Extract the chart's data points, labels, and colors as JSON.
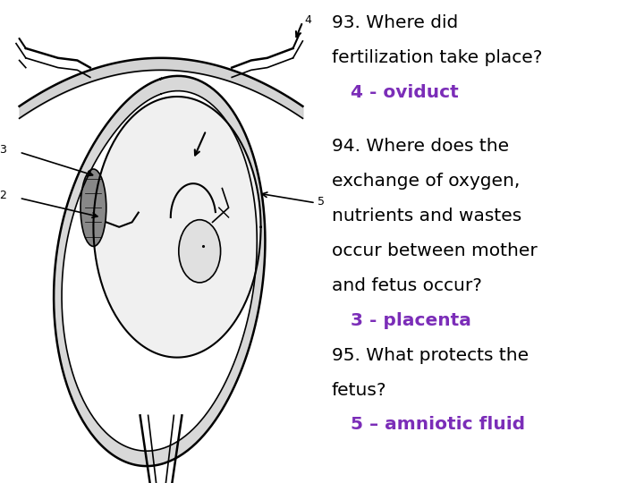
{
  "bg_color": "#ffffff",
  "text_color_black": "#000000",
  "text_color_purple": "#7B2DB8",
  "font_family": "DejaVu Sans",
  "fs": 14.5,
  "q93_line1": "93. Where did",
  "q93_line2": "fertilization take place?",
  "q93_answer": "     4 - oviduct",
  "q94_line1": "94. Where does the",
  "q94_line2": "exchange of oxygen,",
  "q94_line3": "nutrients and wastes",
  "q94_line4": "occur between mother",
  "q94_line5": "and fetus occur?",
  "q94_answer": "     3 - placenta",
  "q95_line1": "95. What protects the",
  "q95_line2": "fetus?",
  "q95_answer": "     5 – amniotic fluid"
}
